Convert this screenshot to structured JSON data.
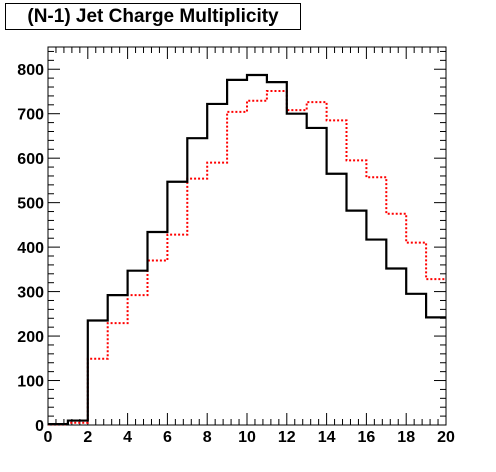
{
  "chart_data": {
    "type": "line",
    "title": "(N-1) Jet Charge Multiplicity",
    "xlabel": "",
    "ylabel": "",
    "xlim": [
      0,
      20
    ],
    "ylim": [
      0,
      850
    ],
    "x_ticks": [
      0,
      2,
      4,
      6,
      8,
      10,
      12,
      14,
      16,
      18,
      20
    ],
    "y_ticks": [
      0,
      100,
      200,
      300,
      400,
      500,
      600,
      700,
      800
    ],
    "grid": false,
    "bin_edges": [
      0,
      1,
      2,
      3,
      4,
      5,
      6,
      7,
      8,
      9,
      10,
      11,
      12,
      13,
      14,
      15,
      16,
      17,
      18,
      19,
      20
    ],
    "series": [
      {
        "style": "solid",
        "color": "#000000",
        "values": [
          2,
          10,
          235,
          292,
          347,
          434,
          547,
          645,
          722,
          776,
          787,
          771,
          700,
          668,
          565,
          482,
          417,
          352,
          295,
          242
        ]
      },
      {
        "style": "dotted",
        "color": "#ff0000",
        "values": [
          1,
          5,
          149,
          229,
          292,
          370,
          428,
          554,
          590,
          704,
          729,
          751,
          708,
          726,
          685,
          595,
          557,
          475,
          410,
          328
        ]
      }
    ]
  }
}
